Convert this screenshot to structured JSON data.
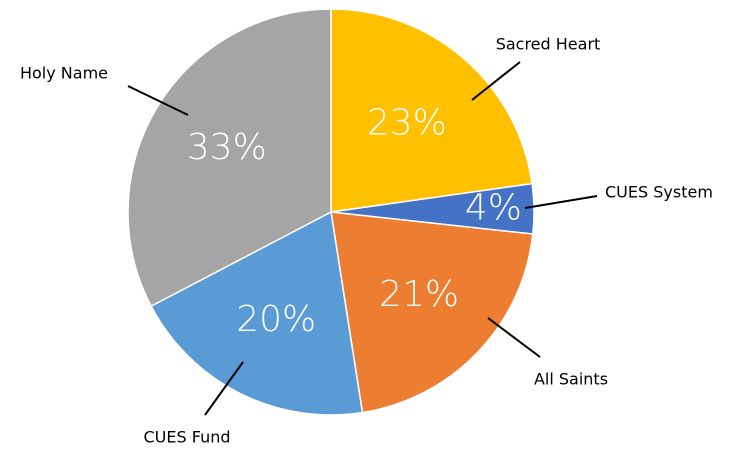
{
  "chart_data": {
    "type": "pie",
    "categories": [
      "Sacred Heart",
      "CUES System",
      "All Saints",
      "CUES Fund",
      "Holy Name"
    ],
    "values": [
      23,
      4,
      21,
      20,
      33
    ],
    "value_labels": [
      "23%",
      "4%",
      "21%",
      "20%",
      "33%"
    ],
    "colors": [
      "#FFC000",
      "#4472C4",
      "#ED7D31",
      "#5B9BD5",
      "#A5A5A5"
    ]
  }
}
